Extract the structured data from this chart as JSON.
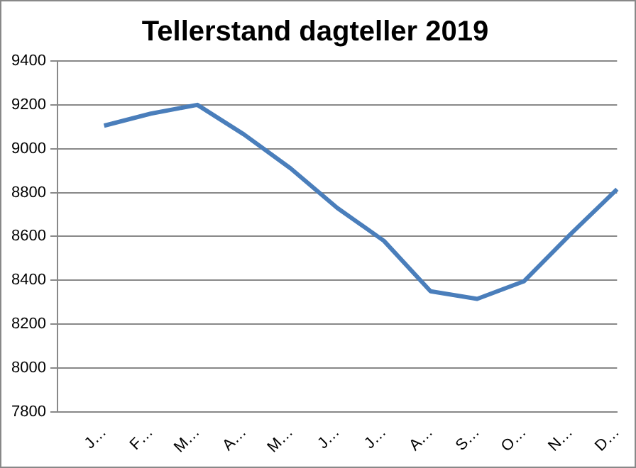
{
  "chart_data": {
    "type": "line",
    "title": "Tellerstand dagteller 2019",
    "categories": [
      null,
      "J…",
      "F…",
      "M…",
      "A…",
      "M…",
      "J…",
      "J…",
      "A…",
      "S…",
      "O…",
      "N…",
      "D…"
    ],
    "series": [
      {
        "color": "#4a7ebb",
        "values": [
          null,
          9105,
          9160,
          9200,
          9065,
          8910,
          8730,
          8580,
          8350,
          8315,
          8395,
          8610,
          8815
        ]
      }
    ],
    "ylim": [
      7800,
      9400
    ],
    "yticks": [
      7800,
      8000,
      8200,
      8400,
      8600,
      8800,
      9000,
      9200,
      9400
    ],
    "grid": "y",
    "legend": false,
    "marker": "none",
    "line_style": "solid"
  }
}
